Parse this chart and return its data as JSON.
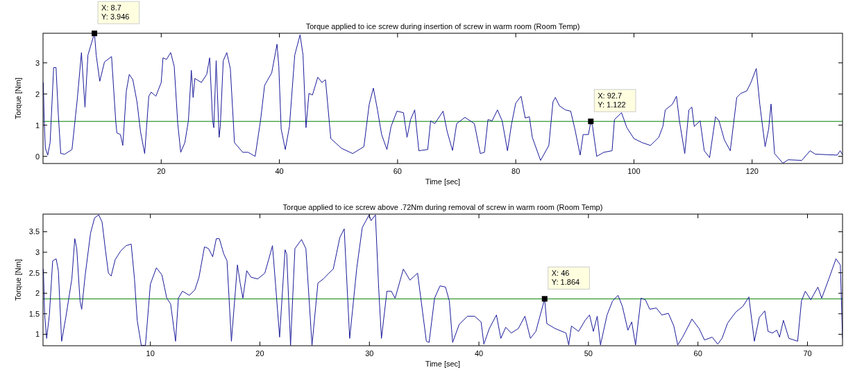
{
  "chart_data": [
    {
      "type": "line",
      "title": "Torque applied to ice screw during insertion of screw in warm room (Room Temp)",
      "xlabel": "Time [sec]",
      "ylabel": "Torque [Nm]",
      "xlim": [
        0,
        135.3
      ],
      "ylim": [
        -0.23,
        3.95
      ],
      "xticks": [
        20,
        40,
        60,
        80,
        100,
        120
      ],
      "yticks": [
        0,
        1,
        2,
        3
      ],
      "series": [
        {
          "color": "#1a1a9a",
          "x": [
            0.05,
            0.2,
            0.4,
            0.8,
            1.2,
            1.8,
            2.2,
            2.6,
            3.0,
            3.7,
            4.9,
            5.8,
            6.5,
            7.1,
            7.6,
            8.7,
            9.0,
            9.6,
            10.4,
            11.6,
            12.3,
            12.5,
            13.1,
            13.5,
            14.1,
            14.6,
            15.2,
            15.9,
            16.5,
            17.2,
            17.9,
            18.3,
            19.1,
            20.0,
            20.3,
            20.9,
            21.6,
            22.2,
            22.8,
            23.3,
            24.0,
            24.6,
            25.1,
            25.4,
            25.7,
            26.8,
            27.7,
            28.2,
            28.7,
            28.9,
            29.3,
            29.8,
            30.0,
            30.5,
            31.1,
            31.7,
            32.4,
            33.8,
            34.7,
            35.9,
            36.8,
            37.5,
            38.7,
            39.6,
            39.9,
            40.3,
            41.0,
            41.7,
            42.6,
            43.5,
            44.0,
            44.5,
            45.0,
            45.6,
            46.5,
            47.2,
            47.8,
            48.7,
            50.5,
            52.4,
            54.3,
            55.2,
            55.9,
            56.6,
            57.3,
            58.2,
            58.9,
            59.9,
            61.0,
            61.6,
            62.2,
            62.9,
            63.6,
            65.1,
            65.6,
            66.3,
            67.7,
            68.4,
            69.3,
            70.0,
            71.4,
            73.0,
            74.0,
            74.7,
            75.3,
            76.0,
            76.9,
            77.7,
            78.6,
            79.3,
            80.0,
            80.9,
            81.6,
            82.3,
            82.8,
            84.2,
            85.6,
            86.3,
            86.7,
            87.4,
            88.4,
            89.3,
            90.0,
            90.9,
            91.4,
            92.3,
            92.7,
            93.0,
            93.7,
            94.9,
            96.3,
            96.7,
            97.9,
            98.8,
            100.0,
            101.4,
            102.8,
            104.2,
            104.9,
            105.3,
            106.5,
            107.2,
            107.7,
            108.6,
            109.3,
            109.8,
            110.2,
            111.2,
            111.9,
            112.8,
            113.8,
            114.4,
            115.3,
            116.3,
            117.4,
            118.1,
            119.1,
            119.8,
            120.7,
            121.3,
            122.2,
            122.8,
            123.2,
            123.8,
            125.2,
            126.1,
            128.4,
            129.8,
            130.7,
            134.4,
            134.9,
            135.3
          ],
          "values": [
            2.37,
            1.14,
            0.26,
            0.04,
            0.44,
            2.85,
            2.85,
            1.3,
            0.09,
            0.07,
            0.22,
            1.84,
            3.33,
            1.58,
            3.25,
            3.95,
            3.25,
            2.41,
            3.03,
            3.2,
            1.14,
            0.75,
            0.7,
            0.35,
            2.1,
            2.63,
            2.46,
            1.75,
            0.79,
            0.09,
            1.93,
            2.06,
            1.93,
            2.37,
            3.16,
            3.11,
            3.33,
            2.89,
            1.05,
            0.13,
            0.44,
            1.14,
            2.76,
            1.89,
            2.5,
            2.37,
            2.63,
            3.16,
            1.14,
            0.92,
            3.07,
            0.61,
            0.96,
            3.07,
            3.33,
            2.81,
            0.44,
            0.13,
            0.13,
            0.0,
            1.14,
            2.28,
            2.68,
            3.6,
            2.89,
            0.88,
            0.22,
            0.96,
            3.25,
            3.9,
            3.25,
            0.92,
            2.02,
            1.97,
            2.54,
            2.37,
            2.46,
            0.57,
            0.26,
            0.09,
            0.31,
            1.67,
            2.19,
            1.49,
            0.7,
            0.22,
            0.96,
            1.45,
            1.4,
            0.61,
            1.18,
            1.49,
            0.18,
            0.22,
            1.14,
            1.05,
            1.45,
            0.79,
            0.19,
            1.05,
            1.25,
            1.05,
            0.09,
            0.13,
            1.18,
            1.14,
            1.49,
            1.14,
            0.18,
            1.05,
            1.71,
            1.93,
            1.23,
            1.27,
            0.61,
            -0.13,
            0.35,
            1.75,
            1.89,
            1.62,
            1.49,
            1.45,
            0.88,
            0.04,
            0.7,
            0.7,
            1.12,
            0.96,
            0.0,
            0.13,
            0.18,
            1.18,
            1.4,
            0.92,
            0.57,
            0.44,
            0.35,
            0.61,
            0.96,
            1.49,
            1.67,
            1.93,
            1.14,
            0.09,
            1.49,
            1.58,
            0.96,
            1.14,
            0.18,
            -0.04,
            1.27,
            1.14,
            0.53,
            0.18,
            1.89,
            2.02,
            2.1,
            2.37,
            2.82,
            1.67,
            0.31,
            0.88,
            1.68,
            0.09,
            -0.22,
            -0.11,
            -0.13,
            0.18,
            0.07,
            0.04,
            0.18,
            0.05
          ]
        }
      ],
      "ref_lines": [
        {
          "axis": "y",
          "value": 1.122,
          "color": "#008000"
        }
      ],
      "annotations": [
        {
          "text": "X: 8.7\nY: 3.946",
          "x": 8.7,
          "y": 3.946
        },
        {
          "text": "X: 92.7\nY: 1.122",
          "x": 92.7,
          "y": 1.122
        }
      ]
    },
    {
      "type": "line",
      "title": "Torque applied to ice screw above .72Nm during removal of screw in warm room (Room Temp)",
      "xlabel": "Time [sec]",
      "ylabel": "Torque [Nm]",
      "xlim": [
        0.2,
        73.2
      ],
      "ylim": [
        0.72,
        3.93
      ],
      "xticks": [
        10,
        20,
        30,
        40,
        50,
        60,
        70
      ],
      "yticks": [
        1,
        1.5,
        2,
        2.5,
        3,
        3.5
      ],
      "series": [
        {
          "color": "#1a1a9a",
          "x": [
            0.23,
            0.35,
            0.53,
            0.78,
            1.08,
            1.4,
            1.6,
            1.9,
            2.28,
            2.83,
            3.1,
            3.28,
            3.58,
            3.73,
            4.04,
            4.54,
            4.91,
            5.29,
            5.59,
            5.91,
            6.17,
            6.42,
            6.79,
            7.29,
            7.79,
            8.25,
            8.55,
            8.8,
            9.17,
            9.55,
            10.0,
            10.55,
            11.05,
            11.5,
            11.85,
            12.3,
            12.56,
            12.93,
            13.56,
            14.06,
            14.44,
            14.94,
            15.31,
            15.69,
            16.02,
            16.3,
            16.7,
            17.0,
            17.4,
            17.95,
            18.2,
            18.45,
            18.8,
            19.2,
            19.8,
            20.45,
            20.8,
            21.15,
            21.45,
            21.8,
            22.3,
            22.45,
            22.8,
            23.2,
            23.8,
            24.2,
            24.76,
            25.3,
            25.8,
            26.3,
            26.7,
            27.3,
            27.7,
            28.2,
            28.85,
            29.35,
            29.97,
            30.15,
            30.55,
            30.85,
            31.1,
            31.6,
            32.0,
            32.35,
            33.1,
            33.7,
            34.4,
            35.2,
            35.45,
            35.95,
            36.45,
            36.95,
            37.3,
            37.6,
            38.2,
            38.95,
            39.6,
            40.2,
            40.45,
            40.95,
            41.6,
            42.0,
            42.45,
            42.95,
            43.6,
            44.2,
            44.7,
            45.2,
            46.0,
            46.2,
            46.95,
            47.95,
            48.2,
            48.45,
            49.1,
            49.7,
            50.1,
            50.45,
            50.8,
            51.1,
            51.7,
            52.2,
            52.7,
            53.1,
            53.6,
            53.95,
            54.3,
            54.8,
            55.2,
            55.6,
            56.2,
            56.7,
            57.3,
            57.8,
            58.15,
            58.6,
            59.45,
            60.1,
            60.6,
            61.3,
            61.8,
            62.2,
            62.7,
            63.45,
            64.1,
            64.65,
            65.15,
            65.6,
            66.1,
            66.4,
            66.8,
            67.2,
            67.45,
            67.8,
            68.3,
            69.1,
            69.45,
            69.8,
            70.3,
            70.95,
            71.3,
            71.95,
            72.6,
            73.0,
            73.2
          ],
          "values": [
            2.59,
            1.47,
            0.9,
            1.47,
            2.79,
            2.84,
            2.55,
            0.83,
            1.41,
            2.35,
            3.33,
            3.09,
            1.81,
            1.61,
            2.42,
            3.47,
            3.84,
            3.91,
            3.74,
            3.03,
            2.49,
            2.42,
            2.82,
            3.03,
            3.16,
            3.2,
            2.35,
            1.34,
            0.73,
            0.73,
            2.22,
            2.62,
            2.45,
            1.88,
            1.74,
            0.83,
            1.88,
            2.05,
            1.95,
            2.08,
            2.39,
            3.13,
            3.09,
            2.89,
            3.33,
            3.33,
            2.96,
            2.79,
            0.83,
            2.69,
            2.25,
            1.88,
            2.55,
            2.39,
            2.35,
            2.49,
            2.82,
            3.16,
            2.15,
            0.93,
            3.06,
            2.96,
            0.73,
            3.09,
            3.31,
            3.09,
            0.73,
            2.25,
            2.35,
            2.49,
            2.59,
            3.36,
            3.57,
            0.9,
            2.62,
            3.6,
            3.91,
            3.77,
            3.91,
            2.11,
            0.9,
            2.05,
            2.05,
            1.88,
            2.59,
            2.32,
            2.49,
            0.83,
            0.8,
            1.88,
            2.18,
            2.15,
            1.81,
            0.8,
            1.24,
            1.44,
            1.44,
            1.3,
            0.76,
            1.14,
            1.47,
            0.9,
            1.17,
            1.03,
            1.14,
            1.44,
            0.9,
            1.07,
            1.86,
            1.26,
            1.14,
            1.03,
            0.74,
            1.2,
            1.07,
            1.34,
            1.47,
            1.07,
            1.44,
            0.74,
            1.47,
            1.81,
            1.95,
            1.68,
            1.1,
            1.3,
            0.74,
            1.88,
            1.84,
            1.61,
            1.64,
            1.47,
            1.51,
            1.2,
            0.74,
            0.93,
            1.37,
            1.14,
            0.86,
            0.93,
            0.76,
            0.9,
            1.27,
            1.54,
            1.68,
            1.91,
            0.83,
            1.41,
            1.57,
            1.07,
            1.03,
            1.1,
            0.93,
            1.34,
            0.9,
            0.83,
            1.81,
            2.05,
            1.84,
            2.15,
            1.88,
            2.35,
            2.84,
            2.69,
            0.9
          ]
        }
      ],
      "ref_lines": [
        {
          "axis": "y",
          "value": 1.864,
          "color": "#008000"
        }
      ],
      "annotations": [
        {
          "text": "X: 46\nY: 1.864",
          "x": 46,
          "y": 1.864
        }
      ]
    }
  ]
}
